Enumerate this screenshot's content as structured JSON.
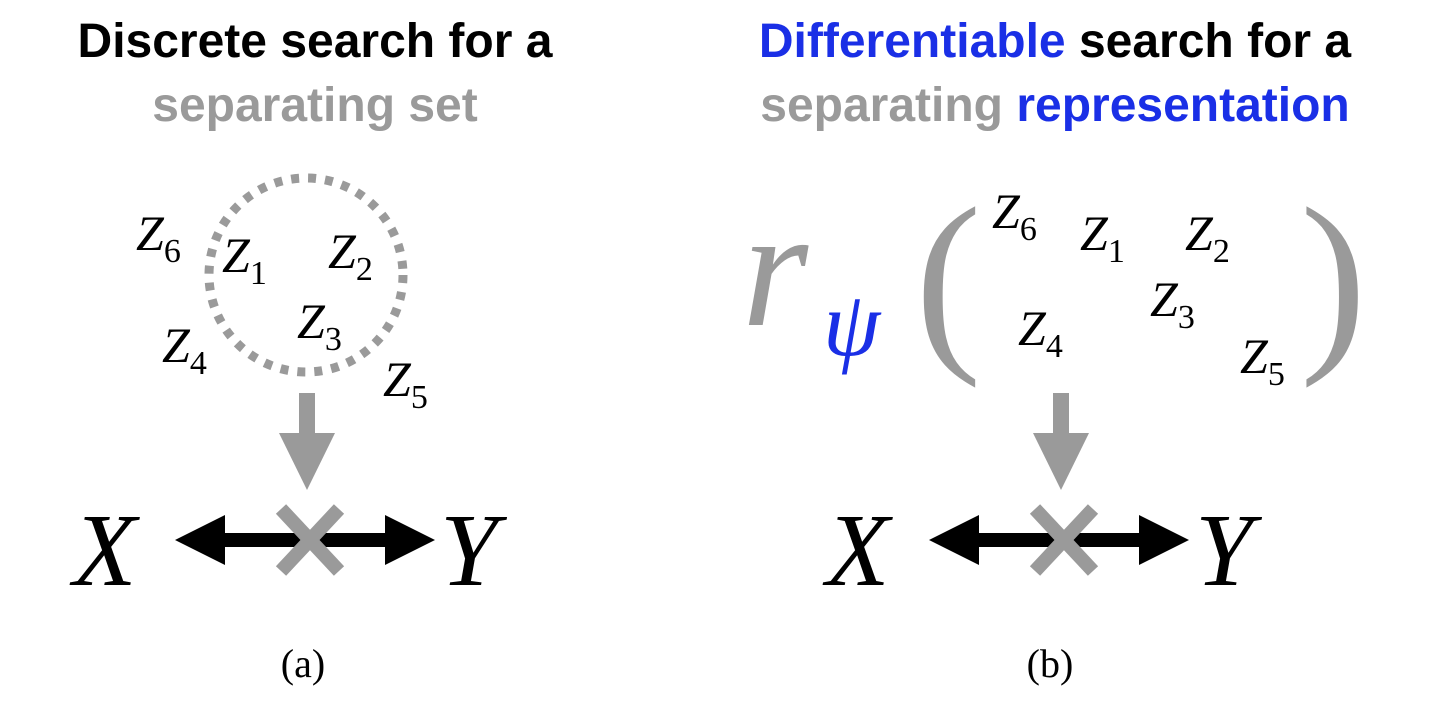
{
  "panel_a": {
    "title_line1": "Discrete search for a",
    "title_line2": "separating set",
    "variables": [
      {
        "base": "Z",
        "sub": "6"
      },
      {
        "base": "Z",
        "sub": "1"
      },
      {
        "base": "Z",
        "sub": "2"
      },
      {
        "base": "Z",
        "sub": "3"
      },
      {
        "base": "Z",
        "sub": "4"
      },
      {
        "base": "Z",
        "sub": "5"
      }
    ],
    "x_label": "X",
    "y_label": "Y",
    "caption": "(a)"
  },
  "panel_b": {
    "title_word1": "Differentiable",
    "title_rest1": " search for a",
    "title_word2": "separating ",
    "title_word3": "representation",
    "func_name": "r",
    "func_sub": "ψ",
    "open_paren": "(",
    "close_paren": ")",
    "variables": [
      {
        "base": "Z",
        "sub": "6"
      },
      {
        "base": "Z",
        "sub": "1"
      },
      {
        "base": "Z",
        "sub": "2"
      },
      {
        "base": "Z",
        "sub": "3"
      },
      {
        "base": "Z",
        "sub": "4"
      },
      {
        "base": "Z",
        "sub": "5"
      }
    ],
    "x_label": "X",
    "y_label": "Y",
    "caption": "(b)"
  },
  "colors": {
    "gray": "#9a9a9a",
    "blue": "#1a2fe6",
    "black": "#000000"
  }
}
